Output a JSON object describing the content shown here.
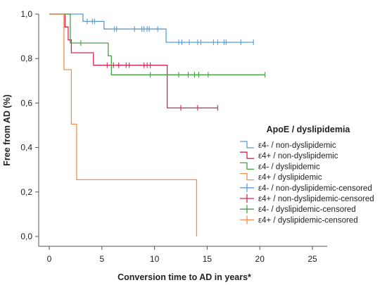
{
  "chart_data": {
    "type": "line",
    "step": true,
    "xlabel": "Conversion time to AD in years*",
    "ylabel": "Free from AD (%)",
    "xlim": [
      0,
      25
    ],
    "ylim": [
      0,
      1
    ],
    "x_ticks": [
      0,
      5,
      10,
      15,
      20,
      25
    ],
    "y_ticks": [
      {
        "value": 0.0,
        "label": "0,0"
      },
      {
        "value": 0.2,
        "label": "0,2"
      },
      {
        "value": 0.4,
        "label": "0,4"
      },
      {
        "value": 0.6,
        "label": "0,6"
      },
      {
        "value": 0.8,
        "label": "0,8"
      },
      {
        "value": 1.0,
        "label": "1,0"
      }
    ],
    "grid": false,
    "legend_title": "ApoE / dyslipidemia",
    "legend_placement": "bottom-right",
    "series": [
      {
        "name": "ε4- / non-dyslipidemic",
        "censored_name": "ε4- / non-dyslipidemic-censored",
        "color": "#5b9bd5",
        "steps": [
          [
            0,
            1.0
          ],
          [
            3.2,
            1.0
          ],
          [
            3.2,
            0.967
          ],
          [
            5.2,
            0.967
          ],
          [
            5.2,
            0.933
          ],
          [
            11.1,
            0.933
          ],
          [
            11.1,
            0.873
          ],
          [
            19.4,
            0.873
          ]
        ],
        "censored": [
          [
            3.6,
            0.967
          ],
          [
            4.1,
            0.967
          ],
          [
            4.3,
            0.967
          ],
          [
            6.2,
            0.933
          ],
          [
            6.4,
            0.933
          ],
          [
            8.1,
            0.933
          ],
          [
            8.8,
            0.933
          ],
          [
            9.0,
            0.933
          ],
          [
            9.3,
            0.933
          ],
          [
            9.5,
            0.933
          ],
          [
            10.3,
            0.933
          ],
          [
            12.3,
            0.873
          ],
          [
            12.6,
            0.873
          ],
          [
            13.3,
            0.873
          ],
          [
            14.1,
            0.873
          ],
          [
            14.4,
            0.873
          ],
          [
            15.6,
            0.873
          ],
          [
            16.0,
            0.873
          ],
          [
            16.6,
            0.873
          ],
          [
            16.8,
            0.873
          ],
          [
            18.2,
            0.873
          ],
          [
            19.4,
            0.873
          ]
        ]
      },
      {
        "name": "ε4+ / non-dyslipidemic",
        "censored_name": "ε4+ / non-dyslipidemic-censored",
        "color": "#d6264f",
        "steps": [
          [
            0,
            1.0
          ],
          [
            1.5,
            1.0
          ],
          [
            1.5,
            0.942
          ],
          [
            1.8,
            0.942
          ],
          [
            1.8,
            0.884
          ],
          [
            2.1,
            0.884
          ],
          [
            2.1,
            0.826
          ],
          [
            4.2,
            0.826
          ],
          [
            4.2,
            0.77
          ],
          [
            11.2,
            0.77
          ],
          [
            11.2,
            0.578
          ],
          [
            16.0,
            0.578
          ]
        ],
        "censored": [
          [
            5.5,
            0.77
          ],
          [
            6.1,
            0.77
          ],
          [
            6.6,
            0.77
          ],
          [
            7.3,
            0.77
          ],
          [
            7.6,
            0.77
          ],
          [
            9.0,
            0.77
          ],
          [
            9.3,
            0.77
          ],
          [
            9.6,
            0.77
          ],
          [
            12.5,
            0.578
          ],
          [
            14.1,
            0.578
          ],
          [
            16.0,
            0.578
          ]
        ]
      },
      {
        "name": "ε4- / dyslipidemic",
        "censored_name": "ε4- / dyslipidemic-censored",
        "color": "#43a340",
        "steps": [
          [
            0,
            1.0
          ],
          [
            2.0,
            1.0
          ],
          [
            2.0,
            0.87
          ],
          [
            5.6,
            0.87
          ],
          [
            5.6,
            0.812
          ],
          [
            5.9,
            0.812
          ],
          [
            5.9,
            0.727
          ],
          [
            20.5,
            0.727
          ]
        ],
        "censored": [
          [
            3.0,
            0.87
          ],
          [
            9.6,
            0.727
          ],
          [
            12.3,
            0.727
          ],
          [
            13.2,
            0.727
          ],
          [
            13.8,
            0.727
          ],
          [
            14.2,
            0.727
          ],
          [
            15.1,
            0.727
          ],
          [
            20.5,
            0.727
          ]
        ]
      },
      {
        "name": "ε4+ / dyslipidemic",
        "censored_name": "ε4+ / dyslipidemic-censored",
        "color": "#f28e52",
        "steps": [
          [
            0,
            1.0
          ],
          [
            1.4,
            1.0
          ],
          [
            1.4,
            0.75
          ],
          [
            2.1,
            0.75
          ],
          [
            2.1,
            0.505
          ],
          [
            2.6,
            0.505
          ],
          [
            2.6,
            0.255
          ],
          [
            14.0,
            0.255
          ],
          [
            14.0,
            0.0
          ]
        ],
        "censored": []
      }
    ]
  }
}
